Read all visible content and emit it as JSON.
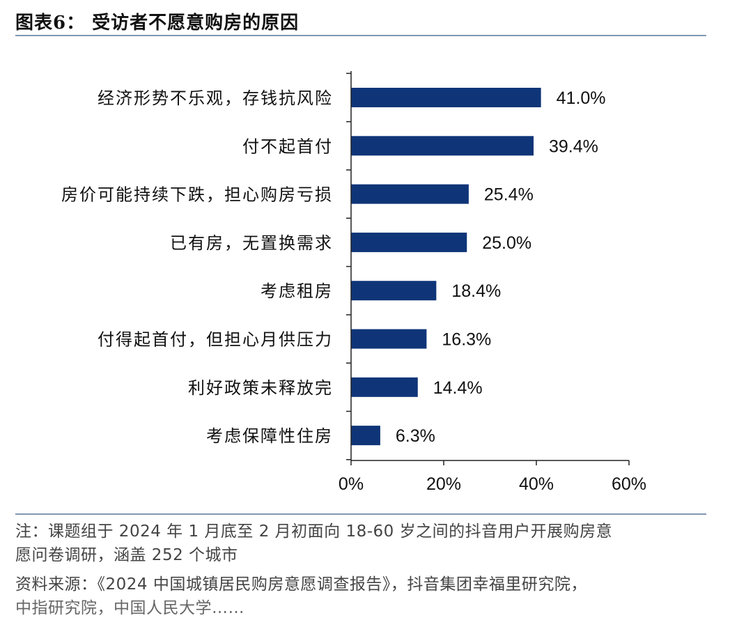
{
  "title": "图表6：  受访者不愿意购房的原因",
  "chart_data": {
    "type": "bar",
    "orientation": "horizontal",
    "categories": [
      "经济形势不乐观，存钱抗风险",
      "付不起首付",
      "房价可能持续下跌，担心购房亏损",
      "已有房，无置换需求",
      "考虑租房",
      "付得起首付，但担心月供压力",
      "利好政策未释放完",
      "考虑保障性住房"
    ],
    "values": [
      41.0,
      39.4,
      25.4,
      25.0,
      18.4,
      16.3,
      14.4,
      6.3
    ],
    "value_labels": [
      "41.0%",
      "39.4%",
      "25.4%",
      "25.0%",
      "18.4%",
      "16.3%",
      "14.4%",
      "6.3%"
    ],
    "xlim": [
      0,
      60
    ],
    "x_ticks": [
      0,
      20,
      40,
      60
    ],
    "x_tick_labels": [
      "0%",
      "20%",
      "40%",
      "60%"
    ],
    "bar_color": "#0f3578",
    "grid": false
  },
  "notes": {
    "line1": "注：课题组于 2024 年 1 月底至 2 月初面向 18-60 岁之间的抖音用户开展购房意",
    "line2": "愿问卷调研，涵盖 252 个城市",
    "line3": "资料来源：《2024 中国城镇居民购房意愿调查报告》，抖音集团幸福里研究院，",
    "line4": "中指研究院，中国人民大学……"
  }
}
